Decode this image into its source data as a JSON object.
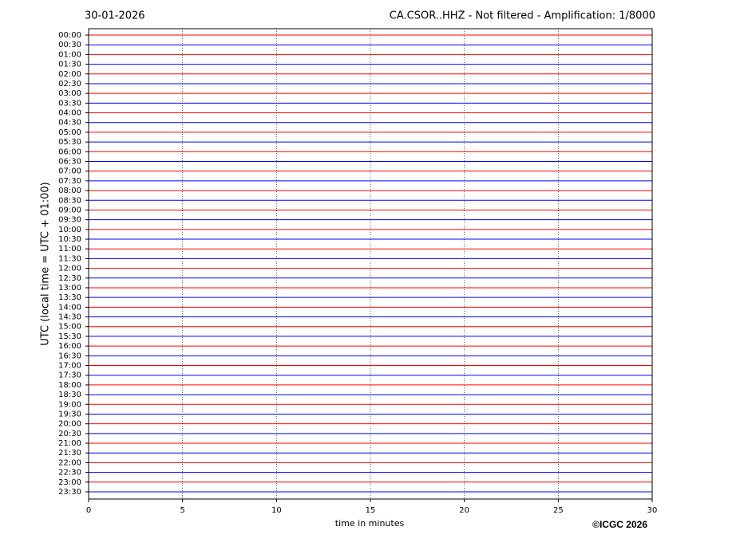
{
  "chart_data": {
    "type": "helicorder",
    "title_left": "30-01-2026",
    "title": "CA.CSOR..HHZ - Not filtered - Amplification: 1/8000",
    "ylabel": "UTC (local time = UTC + 01:00)",
    "xlabel": "time in minutes",
    "credit": "©ICGC 2026",
    "categories": [
      "00:00",
      "00:30",
      "01:00",
      "01:30",
      "02:00",
      "02:30",
      "03:00",
      "03:30",
      "04:00",
      "04:30",
      "05:00",
      "05:30",
      "06:00",
      "06:30",
      "07:00",
      "07:30",
      "08:00",
      "08:30",
      "09:00",
      "09:30",
      "10:00",
      "10:30",
      "11:00",
      "11:30",
      "12:00",
      "12:30",
      "13:00",
      "13:30",
      "14:00",
      "14:30",
      "15:00",
      "15:30",
      "16:00",
      "16:30",
      "17:00",
      "17:30",
      "18:00",
      "18:30",
      "19:00",
      "19:30",
      "20:00",
      "20:30",
      "21:00",
      "21:30",
      "22:00",
      "22:30",
      "23:00",
      "23:30"
    ],
    "xlim": [
      0,
      30
    ],
    "xticks": [
      0,
      5,
      10,
      15,
      20,
      25,
      30
    ],
    "grid": true,
    "trace_colors": [
      "#ff0000",
      "#0000ff"
    ]
  }
}
